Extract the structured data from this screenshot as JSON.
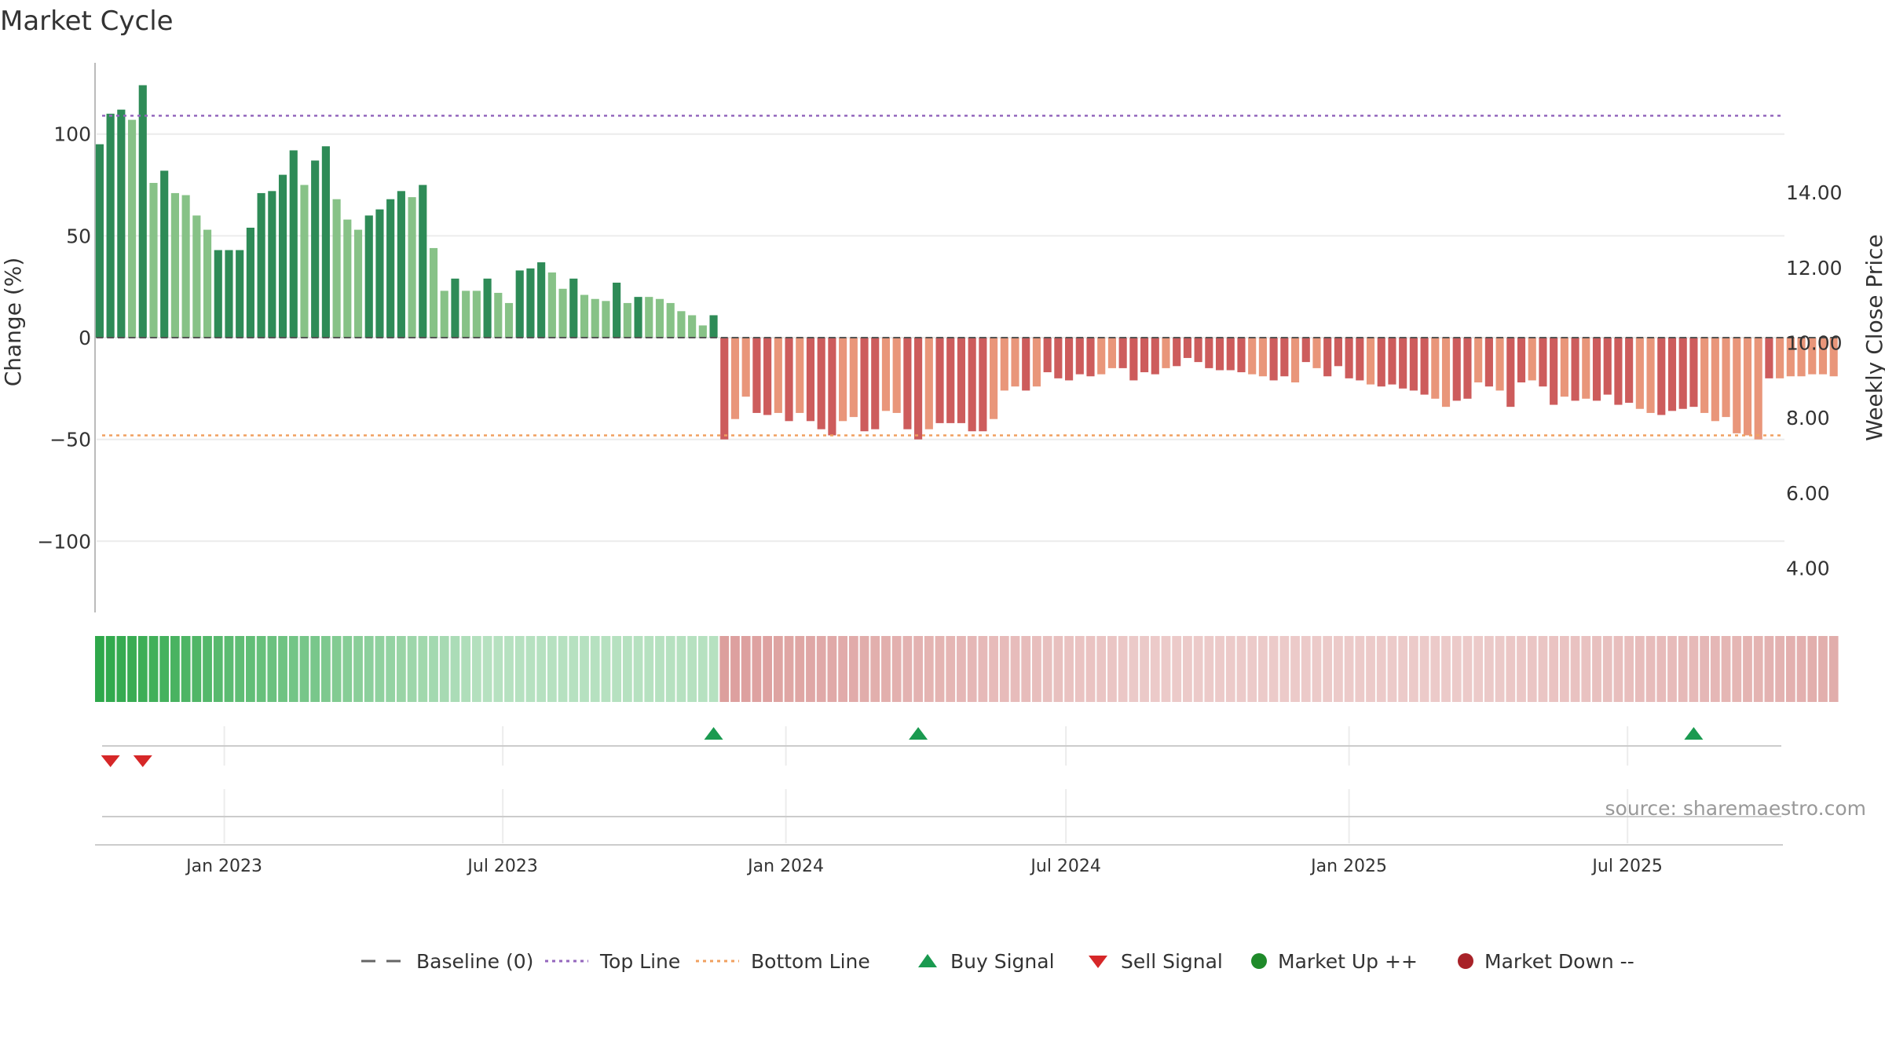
{
  "chart_data": {
    "type": "bar",
    "title": "Market Cycle",
    "ylabel_left": "Change (%)",
    "ylabel_right": "Weekly Close Price",
    "ylim_left": [
      -135,
      135
    ],
    "ylim_right": [
      2.82,
      17.45
    ],
    "yticks_left": [
      {
        "value": 100,
        "label": "100"
      },
      {
        "value": 50,
        "label": "50"
      },
      {
        "value": 0,
        "label": "0"
      },
      {
        "value": -50,
        "label": "−50"
      },
      {
        "value": -100,
        "label": "−100"
      }
    ],
    "yticks_right": [
      {
        "value": 14,
        "label": "14.00"
      },
      {
        "value": 12,
        "label": "12.00"
      },
      {
        "value": 10,
        "label": "10.00"
      },
      {
        "value": 8,
        "label": "8.00"
      },
      {
        "value": 6,
        "label": "6.00"
      },
      {
        "value": 4,
        "label": "4.00"
      }
    ],
    "xlim": [
      "2022-10-10",
      "2025-10-11"
    ],
    "xticks": [
      {
        "date": "2023-01-01",
        "label": "Jan 2023"
      },
      {
        "date": "2023-07-01",
        "label": "Jul 2023"
      },
      {
        "date": "2024-01-01",
        "label": "Jan 2024"
      },
      {
        "date": "2024-07-01",
        "label": "Jul 2024"
      },
      {
        "date": "2025-01-01",
        "label": "Jan 2025"
      },
      {
        "date": "2025-07-01",
        "label": "Jul 2025"
      }
    ],
    "start_date": "2022-10-12",
    "week_step_days": 7,
    "values": [
      95,
      110,
      112,
      107,
      124,
      76,
      82,
      71,
      70,
      60,
      53,
      43,
      43,
      43,
      54,
      71,
      72,
      80,
      92,
      75,
      87,
      94,
      68,
      58,
      53,
      60,
      63,
      68,
      72,
      69,
      75,
      44,
      23,
      29,
      23,
      23,
      29,
      22,
      17,
      33,
      34,
      37,
      32,
      24,
      29,
      21,
      19,
      18,
      27,
      17,
      20,
      20,
      19,
      17,
      13,
      11,
      6,
      11,
      -50,
      -40,
      -29,
      -37,
      -38,
      -37,
      -41,
      -37,
      -41,
      -45,
      -48,
      -41,
      -39,
      -46,
      -45,
      -36,
      -37,
      -45,
      -50,
      -45,
      -42,
      -42,
      -42,
      -46,
      -46,
      -40,
      -26,
      -24,
      -26,
      -24,
      -17,
      -20,
      -21,
      -18,
      -19,
      -18,
      -15,
      -15,
      -21,
      -17,
      -18,
      -15,
      -14,
      -10,
      -12,
      -15,
      -16,
      -16,
      -17,
      -18,
      -19,
      -21,
      -19,
      -22,
      -12,
      -15,
      -19,
      -14,
      -20,
      -21,
      -23,
      -24,
      -23,
      -25,
      -26,
      -28,
      -30,
      -34,
      -31,
      -30,
      -22,
      -24,
      -26,
      -34,
      -22,
      -21,
      -24,
      -33,
      -29,
      -31,
      -30,
      -31,
      -28,
      -33,
      -32,
      -35,
      -37,
      -38,
      -36,
      -35,
      -34,
      -37,
      -41,
      -39,
      -47,
      -48,
      -50,
      -20,
      -20,
      -19,
      -19,
      -18,
      -18,
      -19
    ],
    "strong": [
      1,
      1,
      1,
      0,
      1,
      0,
      1,
      0,
      0,
      0,
      0,
      1,
      1,
      1,
      1,
      1,
      1,
      1,
      1,
      0,
      1,
      1,
      0,
      0,
      0,
      1,
      1,
      1,
      1,
      0,
      1,
      0,
      0,
      1,
      0,
      0,
      1,
      0,
      0,
      1,
      1,
      1,
      0,
      0,
      1,
      0,
      0,
      0,
      1,
      0,
      1,
      0,
      0,
      0,
      0,
      0,
      0,
      1,
      1,
      0,
      0,
      1,
      1,
      0,
      1,
      0,
      1,
      1,
      1,
      0,
      0,
      1,
      1,
      0,
      0,
      1,
      1,
      0,
      1,
      1,
      1,
      1,
      1,
      0,
      0,
      0,
      1,
      0,
      1,
      1,
      1,
      1,
      1,
      0,
      0,
      1,
      1,
      1,
      1,
      0,
      1,
      1,
      1,
      1,
      1,
      1,
      1,
      0,
      0,
      1,
      1,
      0,
      1,
      0,
      1,
      1,
      1,
      1,
      0,
      1,
      1,
      1,
      1,
      1,
      0,
      0,
      1,
      1,
      0,
      1,
      0,
      1,
      1,
      0,
      1,
      1,
      0,
      1,
      0,
      1,
      1,
      1,
      1,
      0,
      0,
      1,
      1,
      1,
      1,
      0,
      0,
      0,
      0,
      0,
      0,
      1
    ],
    "top_line": 109,
    "bottom_line": -48,
    "buy_signals": [
      "2023-11-15",
      "2024-03-27",
      "2025-08-13"
    ],
    "sell_signals": [
      "2022-10-19",
      "2022-11-09"
    ],
    "source": "source: sharemaestro.com",
    "legend": [
      {
        "label": "Baseline (0)",
        "symbol": "dashed-line",
        "color": "#666666"
      },
      {
        "label": "Top Line",
        "symbol": "dotted-line",
        "color": "#9467bd"
      },
      {
        "label": "Bottom Line",
        "symbol": "dotted-line",
        "color": "#f0a060"
      },
      {
        "label": "Buy Signal",
        "symbol": "triangle-up",
        "color": "#1a9a50"
      },
      {
        "label": "Sell Signal",
        "symbol": "triangle-down",
        "color": "#d62728"
      },
      {
        "label": "Market Up ++",
        "symbol": "circle",
        "color": "#1f8a2a"
      },
      {
        "label": "Market Down --",
        "symbol": "circle",
        "color": "#a82228"
      }
    ],
    "colors": {
      "up_strong": "#2e8b57",
      "up_weak": "#87c287",
      "down_strong": "#cd5c5c",
      "down_weak": "#e9967a",
      "top_line": "#9467bd",
      "bottom_line": "#f0a060"
    }
  }
}
